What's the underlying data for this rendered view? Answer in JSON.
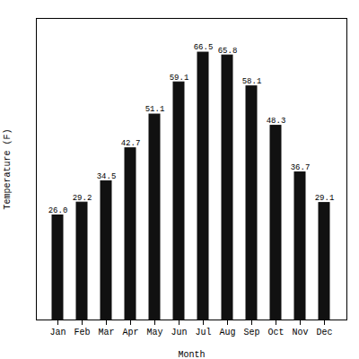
{
  "chart_data": {
    "type": "bar",
    "categories": [
      "Jan",
      "Feb",
      "Mar",
      "Apr",
      "May",
      "Jun",
      "Jul",
      "Aug",
      "Sep",
      "Oct",
      "Nov",
      "Dec"
    ],
    "values": [
      26.0,
      29.2,
      34.5,
      42.7,
      51.1,
      59.1,
      66.5,
      65.8,
      58.1,
      48.3,
      36.7,
      29.1
    ],
    "value_labels": [
      "26.0",
      "29.2",
      "34.5",
      "42.7",
      "51.1",
      "59.1",
      "66.5",
      "65.8",
      "58.1",
      "48.3",
      "36.7",
      "29.1"
    ],
    "color": "#111111",
    "xlabel": "Month",
    "ylabel": "Temperature (F)",
    "ylim": [
      0,
      75
    ],
    "yticks": [],
    "tick_labels": "x",
    "data_labels": true,
    "grid": false
  }
}
